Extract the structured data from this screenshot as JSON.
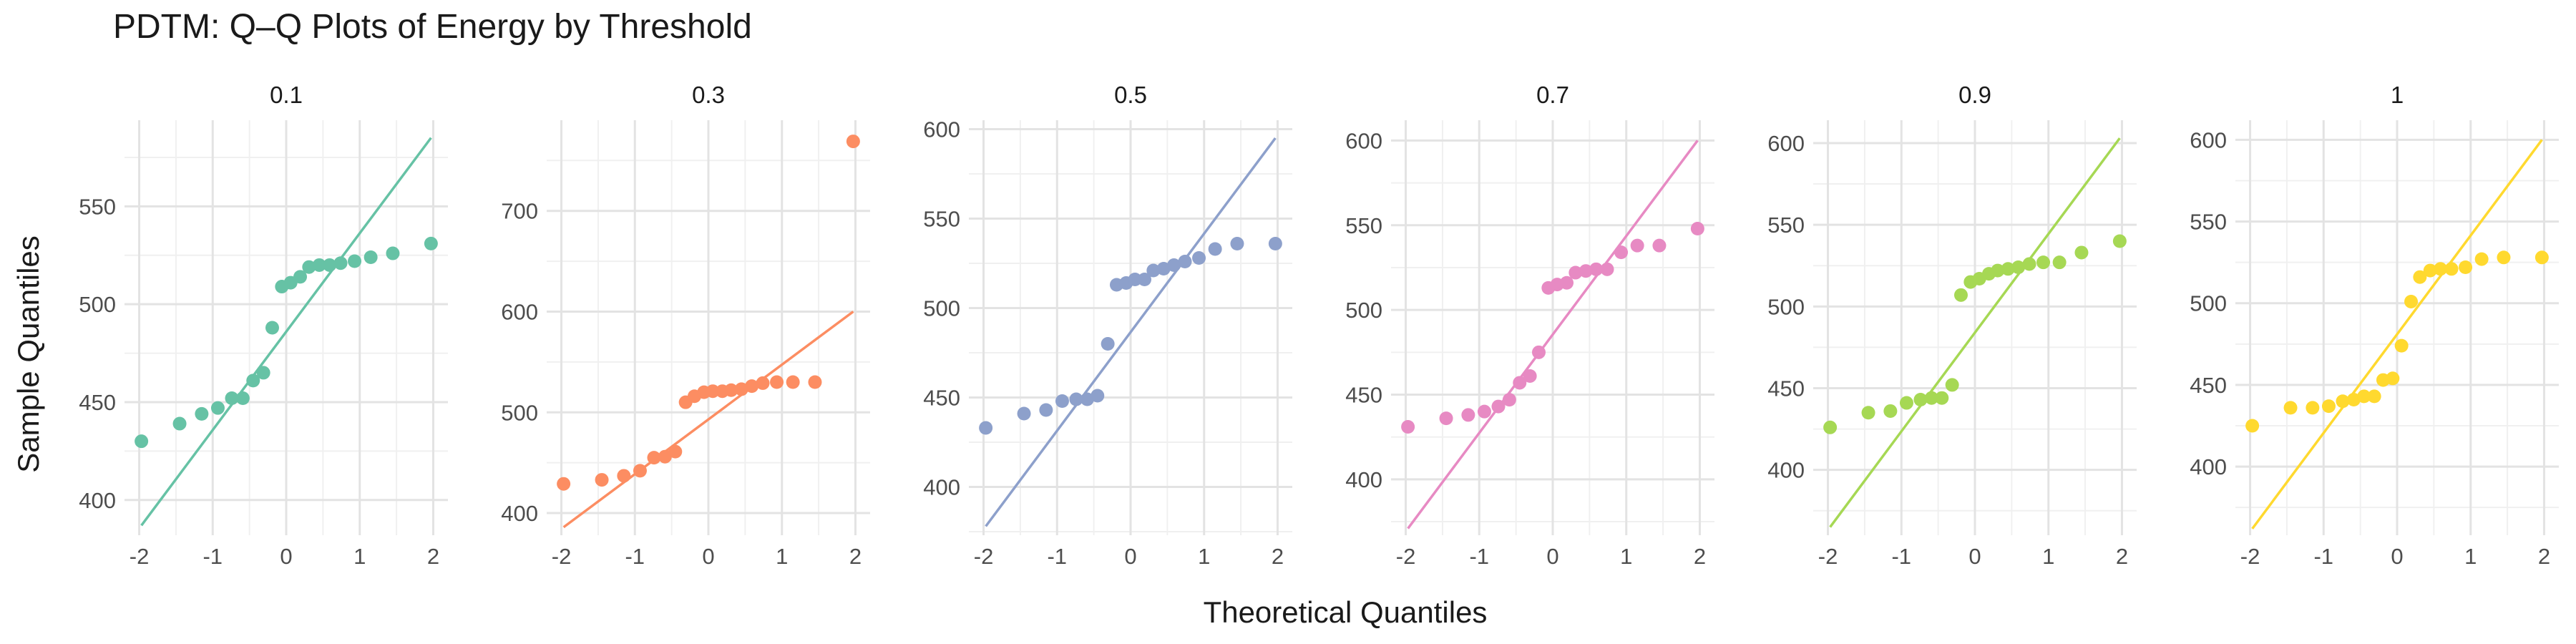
{
  "title": "PDTM: Q–Q Plots of Energy by Threshold",
  "chart_data": {
    "type": "scatter",
    "title": "PDTM: Q–Q Plots of Energy by Threshold",
    "xlabel": "Theoretical Quantiles",
    "ylabel": "Sample Quantiles",
    "xlim": [
      -2,
      2
    ],
    "x_ticks": [
      -2,
      -1,
      0,
      1,
      2
    ],
    "grid": true,
    "legend": "none",
    "theoretical_quantiles": [
      -1.97,
      -1.45,
      -1.15,
      -0.93,
      -0.74,
      -0.59,
      -0.45,
      -0.31,
      -0.19,
      -0.06,
      0.06,
      0.19,
      0.31,
      0.45,
      0.59,
      0.74,
      0.93,
      1.15,
      1.45,
      1.97
    ],
    "facets": [
      {
        "label": "0.1",
        "color": "#66C2A5",
        "ylim": [
          382,
          594
        ],
        "y_ticks": [
          400,
          450,
          500,
          550
        ],
        "sample": [
          430,
          439,
          444,
          447,
          452,
          452,
          461,
          465,
          488,
          509,
          511,
          514,
          519,
          520,
          520,
          521,
          522,
          524,
          526,
          531
        ],
        "line": {
          "x": [
            -1.97,
            1.97
          ],
          "y": [
            387,
            585
          ]
        }
      },
      {
        "label": "0.3",
        "color": "#FC8D62",
        "ylim": [
          378,
          790
        ],
        "y_ticks": [
          400,
          500,
          600,
          700
        ],
        "sample": [
          429,
          433,
          437,
          442,
          455,
          456,
          461,
          510,
          516,
          520,
          521,
          521,
          522,
          523,
          526,
          529,
          530,
          530,
          530,
          769
        ],
        "line": {
          "x": [
            -1.97,
            1.97
          ],
          "y": [
            386,
            600
          ]
        }
      },
      {
        "label": "0.5",
        "color": "#8DA0CB",
        "ylim": [
          373,
          605
        ],
        "y_ticks": [
          400,
          450,
          500,
          550,
          600
        ],
        "sample": [
          433,
          441,
          443,
          448,
          449,
          449,
          451,
          480,
          513,
          514,
          516,
          516,
          521,
          522,
          524,
          526,
          528,
          533,
          536,
          536
        ],
        "line": {
          "x": [
            -1.97,
            1.97
          ],
          "y": [
            378,
            595
          ]
        }
      },
      {
        "label": "0.7",
        "color": "#E78AC3",
        "ylim": [
          367,
          612
        ],
        "y_ticks": [
          400,
          450,
          500,
          550,
          600
        ],
        "sample": [
          431,
          436,
          438,
          440,
          443,
          447,
          457,
          461,
          475,
          513,
          515,
          516,
          522,
          523,
          524,
          524,
          534,
          538,
          538,
          548
        ],
        "line": {
          "x": [
            -1.97,
            1.97
          ],
          "y": [
            371,
            600
          ]
        }
      },
      {
        "label": "0.9",
        "color": "#A6D854",
        "ylim": [
          360,
          614
        ],
        "y_ticks": [
          400,
          450,
          500,
          550,
          600
        ],
        "sample": [
          426,
          435,
          436,
          441,
          443,
          444,
          444,
          452,
          507,
          515,
          517,
          520,
          522,
          523,
          524,
          526,
          527,
          527,
          533,
          540
        ],
        "line": {
          "x": [
            -1.97,
            1.97
          ],
          "y": [
            365,
            603
          ]
        }
      },
      {
        "label": "1",
        "color": "#FFD92F",
        "ylim": [
          358,
          612
        ],
        "y_ticks": [
          400,
          450,
          500,
          550,
          600
        ],
        "sample": [
          425,
          436,
          436,
          437,
          440,
          441,
          443,
          443,
          453,
          454,
          474,
          501,
          516,
          520,
          521,
          521,
          522,
          527,
          528,
          528
        ],
        "line": {
          "x": [
            -1.97,
            1.97
          ],
          "y": [
            362,
            600
          ]
        }
      }
    ]
  }
}
